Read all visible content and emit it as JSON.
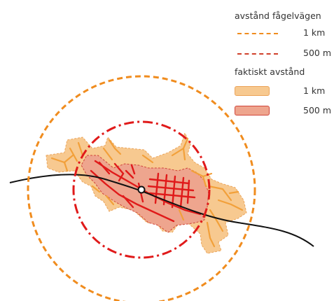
{
  "legend": {
    "straight_line_heading": "avstånd fågelvägen",
    "straight_line_items": [
      {
        "label": "1 km",
        "color": "#f08c1e"
      },
      {
        "label": "500 m",
        "color": "#e0401e"
      }
    ],
    "actual_heading": "faktiskt avstånd",
    "actual_items": [
      {
        "label": "1 km",
        "fill": "#f7c990",
        "stroke": "#eba45a"
      },
      {
        "label": "500 m",
        "fill": "#eea58e",
        "stroke": "#d0453a"
      }
    ]
  },
  "map_colors": {
    "radius_1km": "#f08c1e",
    "radius_500m": "#e01a1a",
    "area_1km_fill": "#f7c990",
    "area_500m_fill": "#eea58e",
    "streets_outer": "#f2a03a",
    "streets_core": "#e01a1a",
    "railway": "#111111"
  }
}
